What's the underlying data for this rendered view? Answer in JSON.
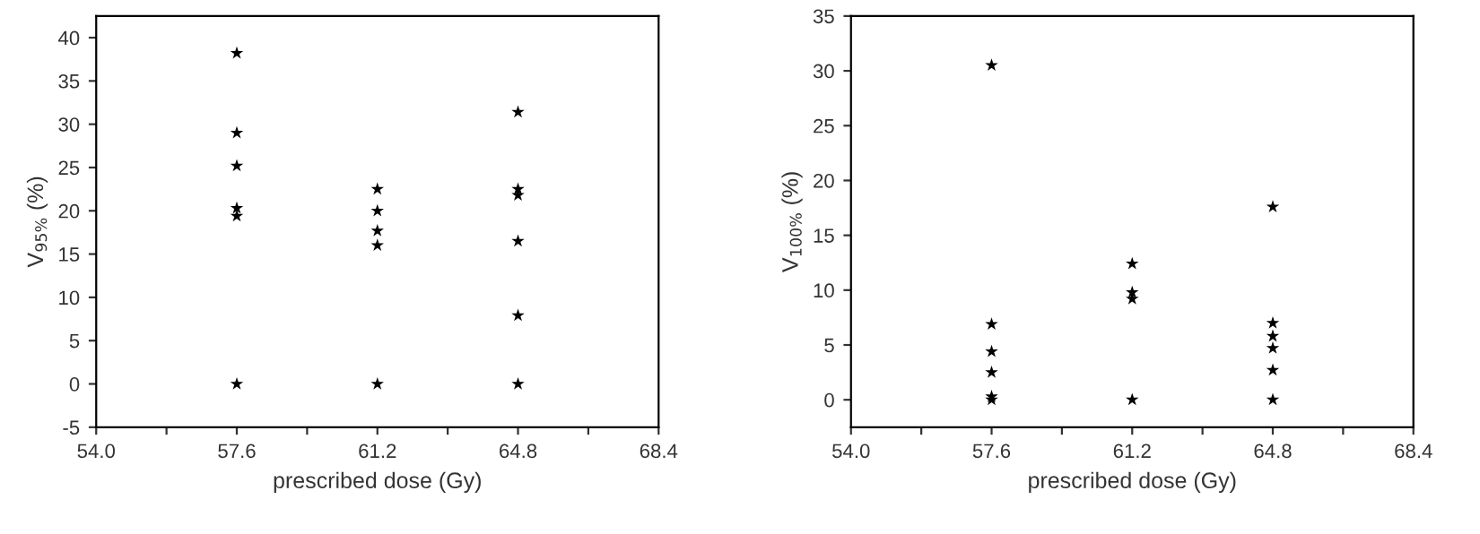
{
  "chart_data": [
    {
      "type": "scatter",
      "xlabel": "prescribed dose (Gy)",
      "ylabel": "V$_{95%}$ (%)",
      "marker": "star",
      "grid": false,
      "legend": false,
      "series": [
        {
          "color": "#000000",
          "x": [
            57.6,
            57.6,
            57.6,
            57.6,
            57.6,
            57.6,
            61.2,
            61.2,
            61.2,
            61.2,
            61.2,
            64.8,
            64.8,
            64.8,
            64.8,
            64.8,
            64.8
          ],
          "values": [
            38.2,
            29,
            25.2,
            20.3,
            19.4,
            0,
            22.5,
            20,
            17.7,
            16,
            0,
            31.4,
            22.5,
            21.8,
            16.5,
            7.9,
            0
          ]
        }
      ],
      "xlim": [
        54.0,
        68.4
      ],
      "xticks": [
        {
          "value": 54.0,
          "label": "54.0"
        },
        {
          "value": 55.8,
          "label": null
        },
        {
          "value": 57.6,
          "label": "57.6"
        },
        {
          "value": 59.4,
          "label": null
        },
        {
          "value": 61.2,
          "label": "61.2"
        },
        {
          "value": 63.0,
          "label": null
        },
        {
          "value": 64.8,
          "label": "64.8"
        },
        {
          "value": 66.6,
          "label": null
        },
        {
          "value": 68.4,
          "label": "68.4"
        }
      ],
      "ylim": [
        -5,
        42.5
      ],
      "yticks": [
        -5,
        0,
        5,
        10,
        15,
        20,
        25,
        30,
        35,
        40
      ]
    },
    {
      "type": "scatter",
      "xlabel": "prescribed dose (Gy)",
      "ylabel": "V$_{100%}$ (%)",
      "marker": "star",
      "grid": false,
      "legend": false,
      "series": [
        {
          "color": "#000000",
          "x": [
            57.6,
            57.6,
            57.6,
            57.6,
            57.6,
            57.6,
            61.2,
            61.2,
            61.2,
            61.2,
            64.8,
            64.8,
            64.8,
            64.8,
            64.8,
            64.8
          ],
          "values": [
            30.5,
            6.9,
            4.4,
            2.5,
            0.3,
            0,
            12.4,
            9.8,
            9.2,
            0,
            17.6,
            7.0,
            5.8,
            4.7,
            2.7,
            0
          ]
        }
      ],
      "xlim": [
        54.0,
        68.4
      ],
      "xticks": [
        {
          "value": 54.0,
          "label": "54.0"
        },
        {
          "value": 55.8,
          "label": null
        },
        {
          "value": 57.6,
          "label": "57.6"
        },
        {
          "value": 59.4,
          "label": null
        },
        {
          "value": 61.2,
          "label": "61.2"
        },
        {
          "value": 63.0,
          "label": null
        },
        {
          "value": 64.8,
          "label": "64.8"
        },
        {
          "value": 66.6,
          "label": null
        },
        {
          "value": 68.4,
          "label": "68.4"
        }
      ],
      "ylim": [
        -2.5,
        35
      ],
      "yticks": [
        0,
        5,
        10,
        15,
        20,
        25,
        30,
        35
      ]
    }
  ]
}
